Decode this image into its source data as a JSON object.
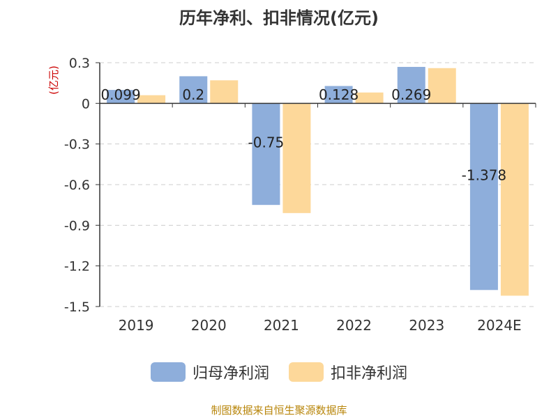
{
  "chart_data": {
    "type": "bar",
    "title": "历年净利、扣非情况(亿元)",
    "ylabel": "(亿元)",
    "xlabel": "",
    "categories": [
      "2019",
      "2020",
      "2021",
      "2022",
      "2023",
      "2024E"
    ],
    "ylim": [
      -1.5,
      0.3
    ],
    "yticks": [
      "0.3",
      "0",
      "-0.3",
      "-0.6",
      "-0.9",
      "-1.2",
      "-1.5"
    ],
    "grid": true,
    "legend_position": "bottom",
    "series": [
      {
        "name": "归母净利润",
        "color": "#8eaedb",
        "values": [
          0.099,
          0.2,
          -0.75,
          0.128,
          0.269,
          -1.378
        ],
        "labels": [
          "0.099",
          "0.2",
          "-0.75",
          "0.128",
          "0.269",
          "-1.378"
        ]
      },
      {
        "name": "扣非净利润",
        "color": "#fdd89a",
        "values": [
          0.06,
          0.17,
          -0.81,
          0.08,
          0.26,
          -1.42
        ],
        "labels": []
      }
    ]
  },
  "source_note": "制图数据来自恒生聚源数据库",
  "colors": {
    "title": "#333333",
    "axis_label": "#cc0000",
    "grid": "#cccccc",
    "source": "#b8860b"
  }
}
